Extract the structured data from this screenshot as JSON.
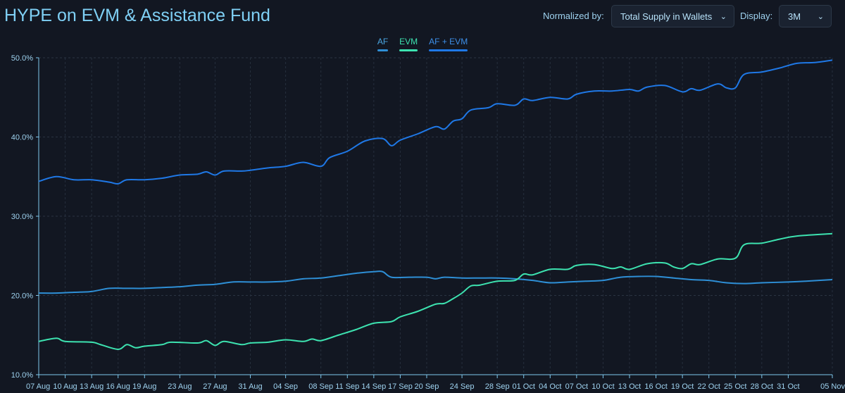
{
  "header": {
    "title": "HYPE on EVM & Assistance Fund",
    "normalized_label": "Normalized by:",
    "normalized_value": "Total Supply in Wallets",
    "display_label": "Display:",
    "display_value": "3M",
    "chevron_icon": "chevron-down-icon"
  },
  "colors": {
    "background": "#121722",
    "AF": "#2e8fd6",
    "EVM": "#3de3b0",
    "AF + EVM": "#1f78e6"
  },
  "chart_data": {
    "type": "line",
    "legend_placement": "top-center",
    "grid": true,
    "ylim": [
      10,
      50
    ],
    "y_ticks": [
      "10.0%",
      "20.0%",
      "30.0%",
      "40.0%",
      "50.0%"
    ],
    "y_tick_values": [
      10,
      20,
      30,
      40,
      50
    ],
    "x_ticks": [
      "07 Aug",
      "10 Aug",
      "13 Aug",
      "16 Aug",
      "19 Aug",
      "23 Aug",
      "27 Aug",
      "31 Aug",
      "04 Sep",
      "08 Sep",
      "11 Sep",
      "14 Sep",
      "17 Sep",
      "20 Sep",
      "24 Sep",
      "28 Sep",
      "01 Oct",
      "04 Oct",
      "07 Oct",
      "10 Oct",
      "13 Oct",
      "16 Oct",
      "19 Oct",
      "22 Oct",
      "25 Oct",
      "28 Oct",
      "31 Oct",
      "05 Nov"
    ],
    "xlim": [
      "07 Aug",
      "05 Nov"
    ],
    "series": [
      {
        "name": "AF",
        "points": [
          [
            "07 Aug",
            20.3
          ],
          [
            "09 Aug",
            20.3
          ],
          [
            "11 Aug",
            20.4
          ],
          [
            "13 Aug",
            20.5
          ],
          [
            "15 Aug",
            20.9
          ],
          [
            "17 Aug",
            20.9
          ],
          [
            "19 Aug",
            20.9
          ],
          [
            "21 Aug",
            21.0
          ],
          [
            "23 Aug",
            21.1
          ],
          [
            "25 Aug",
            21.3
          ],
          [
            "27 Aug",
            21.4
          ],
          [
            "29 Aug",
            21.7
          ],
          [
            "31 Aug",
            21.7
          ],
          [
            "02 Sep",
            21.7
          ],
          [
            "04 Sep",
            21.8
          ],
          [
            "06 Sep",
            22.1
          ],
          [
            "08 Sep",
            22.2
          ],
          [
            "10 Sep",
            22.5
          ],
          [
            "12 Sep",
            22.8
          ],
          [
            "14 Sep",
            23.0
          ],
          [
            "15 Sep",
            23.0
          ],
          [
            "16 Sep",
            22.3
          ],
          [
            "18 Sep",
            22.3
          ],
          [
            "20 Sep",
            22.3
          ],
          [
            "21 Sep",
            22.1
          ],
          [
            "22 Sep",
            22.3
          ],
          [
            "24 Sep",
            22.2
          ],
          [
            "26 Sep",
            22.2
          ],
          [
            "28 Sep",
            22.2
          ],
          [
            "30 Sep",
            22.1
          ],
          [
            "02 Oct",
            21.9
          ],
          [
            "04 Oct",
            21.6
          ],
          [
            "06 Oct",
            21.7
          ],
          [
            "08 Oct",
            21.8
          ],
          [
            "10 Oct",
            21.9
          ],
          [
            "12 Oct",
            22.3
          ],
          [
            "14 Oct",
            22.4
          ],
          [
            "16 Oct",
            22.4
          ],
          [
            "18 Oct",
            22.2
          ],
          [
            "20 Oct",
            22.0
          ],
          [
            "22 Oct",
            21.9
          ],
          [
            "24 Oct",
            21.6
          ],
          [
            "26 Oct",
            21.5
          ],
          [
            "28 Oct",
            21.6
          ],
          [
            "31 Oct",
            21.7
          ],
          [
            "02 Nov",
            21.8
          ],
          [
            "05 Nov",
            22.0
          ]
        ]
      },
      {
        "name": "EVM",
        "points": [
          [
            "07 Aug",
            14.2
          ],
          [
            "09 Aug",
            14.6
          ],
          [
            "10 Aug",
            14.2
          ],
          [
            "13 Aug",
            14.1
          ],
          [
            "14 Aug",
            13.8
          ],
          [
            "16 Aug",
            13.2
          ],
          [
            "17 Aug",
            13.8
          ],
          [
            "18 Aug",
            13.4
          ],
          [
            "19 Aug",
            13.6
          ],
          [
            "21 Aug",
            13.8
          ],
          [
            "22 Aug",
            14.1
          ],
          [
            "25 Aug",
            14.0
          ],
          [
            "26 Aug",
            14.3
          ],
          [
            "27 Aug",
            13.7
          ],
          [
            "28 Aug",
            14.2
          ],
          [
            "30 Aug",
            13.8
          ],
          [
            "31 Aug",
            14.0
          ],
          [
            "02 Sep",
            14.1
          ],
          [
            "04 Sep",
            14.4
          ],
          [
            "06 Sep",
            14.2
          ],
          [
            "07 Sep",
            14.5
          ],
          [
            "08 Sep",
            14.3
          ],
          [
            "10 Sep",
            15.0
          ],
          [
            "12 Sep",
            15.7
          ],
          [
            "14 Sep",
            16.5
          ],
          [
            "16 Sep",
            16.7
          ],
          [
            "17 Sep",
            17.3
          ],
          [
            "19 Sep",
            18.0
          ],
          [
            "21 Sep",
            18.9
          ],
          [
            "22 Sep",
            19.0
          ],
          [
            "23 Sep",
            19.6
          ],
          [
            "24 Sep",
            20.3
          ],
          [
            "25 Sep",
            21.2
          ],
          [
            "26 Sep",
            21.3
          ],
          [
            "28 Sep",
            21.8
          ],
          [
            "30 Sep",
            21.9
          ],
          [
            "01 Oct",
            22.7
          ],
          [
            "02 Oct",
            22.6
          ],
          [
            "04 Oct",
            23.3
          ],
          [
            "06 Oct",
            23.3
          ],
          [
            "07 Oct",
            23.8
          ],
          [
            "09 Oct",
            23.9
          ],
          [
            "11 Oct",
            23.4
          ],
          [
            "12 Oct",
            23.6
          ],
          [
            "13 Oct",
            23.3
          ],
          [
            "15 Oct",
            24.0
          ],
          [
            "17 Oct",
            24.1
          ],
          [
            "18 Oct",
            23.6
          ],
          [
            "19 Oct",
            23.4
          ],
          [
            "20 Oct",
            24.0
          ],
          [
            "21 Oct",
            23.9
          ],
          [
            "23 Oct",
            24.6
          ],
          [
            "25 Oct",
            24.7
          ],
          [
            "26 Oct",
            26.4
          ],
          [
            "28 Oct",
            26.6
          ],
          [
            "30 Oct",
            27.1
          ],
          [
            "01 Nov",
            27.5
          ],
          [
            "05 Nov",
            27.8
          ]
        ]
      },
      {
        "name": "AF + EVM",
        "points": [
          [
            "07 Aug",
            34.4
          ],
          [
            "09 Aug",
            35.0
          ],
          [
            "11 Aug",
            34.6
          ],
          [
            "13 Aug",
            34.6
          ],
          [
            "15 Aug",
            34.3
          ],
          [
            "16 Aug",
            34.1
          ],
          [
            "17 Aug",
            34.6
          ],
          [
            "19 Aug",
            34.6
          ],
          [
            "21 Aug",
            34.8
          ],
          [
            "23 Aug",
            35.2
          ],
          [
            "25 Aug",
            35.3
          ],
          [
            "26 Aug",
            35.6
          ],
          [
            "27 Aug",
            35.2
          ],
          [
            "28 Aug",
            35.7
          ],
          [
            "30 Aug",
            35.7
          ],
          [
            "31 Aug",
            35.8
          ],
          [
            "02 Sep",
            36.1
          ],
          [
            "04 Sep",
            36.3
          ],
          [
            "06 Sep",
            36.8
          ],
          [
            "08 Sep",
            36.3
          ],
          [
            "09 Sep",
            37.4
          ],
          [
            "11 Sep",
            38.2
          ],
          [
            "13 Sep",
            39.5
          ],
          [
            "15 Sep",
            39.8
          ],
          [
            "16 Sep",
            38.9
          ],
          [
            "17 Sep",
            39.6
          ],
          [
            "19 Sep",
            40.4
          ],
          [
            "21 Sep",
            41.3
          ],
          [
            "22 Sep",
            41.0
          ],
          [
            "23 Sep",
            42.0
          ],
          [
            "24 Sep",
            42.3
          ],
          [
            "25 Sep",
            43.4
          ],
          [
            "27 Sep",
            43.7
          ],
          [
            "28 Sep",
            44.2
          ],
          [
            "30 Sep",
            44.0
          ],
          [
            "01 Oct",
            44.8
          ],
          [
            "02 Oct",
            44.6
          ],
          [
            "04 Oct",
            45.0
          ],
          [
            "06 Oct",
            44.8
          ],
          [
            "07 Oct",
            45.4
          ],
          [
            "09 Oct",
            45.8
          ],
          [
            "11 Oct",
            45.8
          ],
          [
            "13 Oct",
            46.0
          ],
          [
            "14 Oct",
            45.8
          ],
          [
            "15 Oct",
            46.3
          ],
          [
            "17 Oct",
            46.5
          ],
          [
            "19 Oct",
            45.7
          ],
          [
            "20 Oct",
            46.1
          ],
          [
            "21 Oct",
            45.9
          ],
          [
            "23 Oct",
            46.7
          ],
          [
            "24 Oct",
            46.2
          ],
          [
            "25 Oct",
            46.2
          ],
          [
            "26 Oct",
            47.9
          ],
          [
            "28 Oct",
            48.2
          ],
          [
            "30 Oct",
            48.7
          ],
          [
            "01 Nov",
            49.3
          ],
          [
            "03 Nov",
            49.4
          ],
          [
            "05 Nov",
            49.7
          ]
        ]
      }
    ]
  }
}
